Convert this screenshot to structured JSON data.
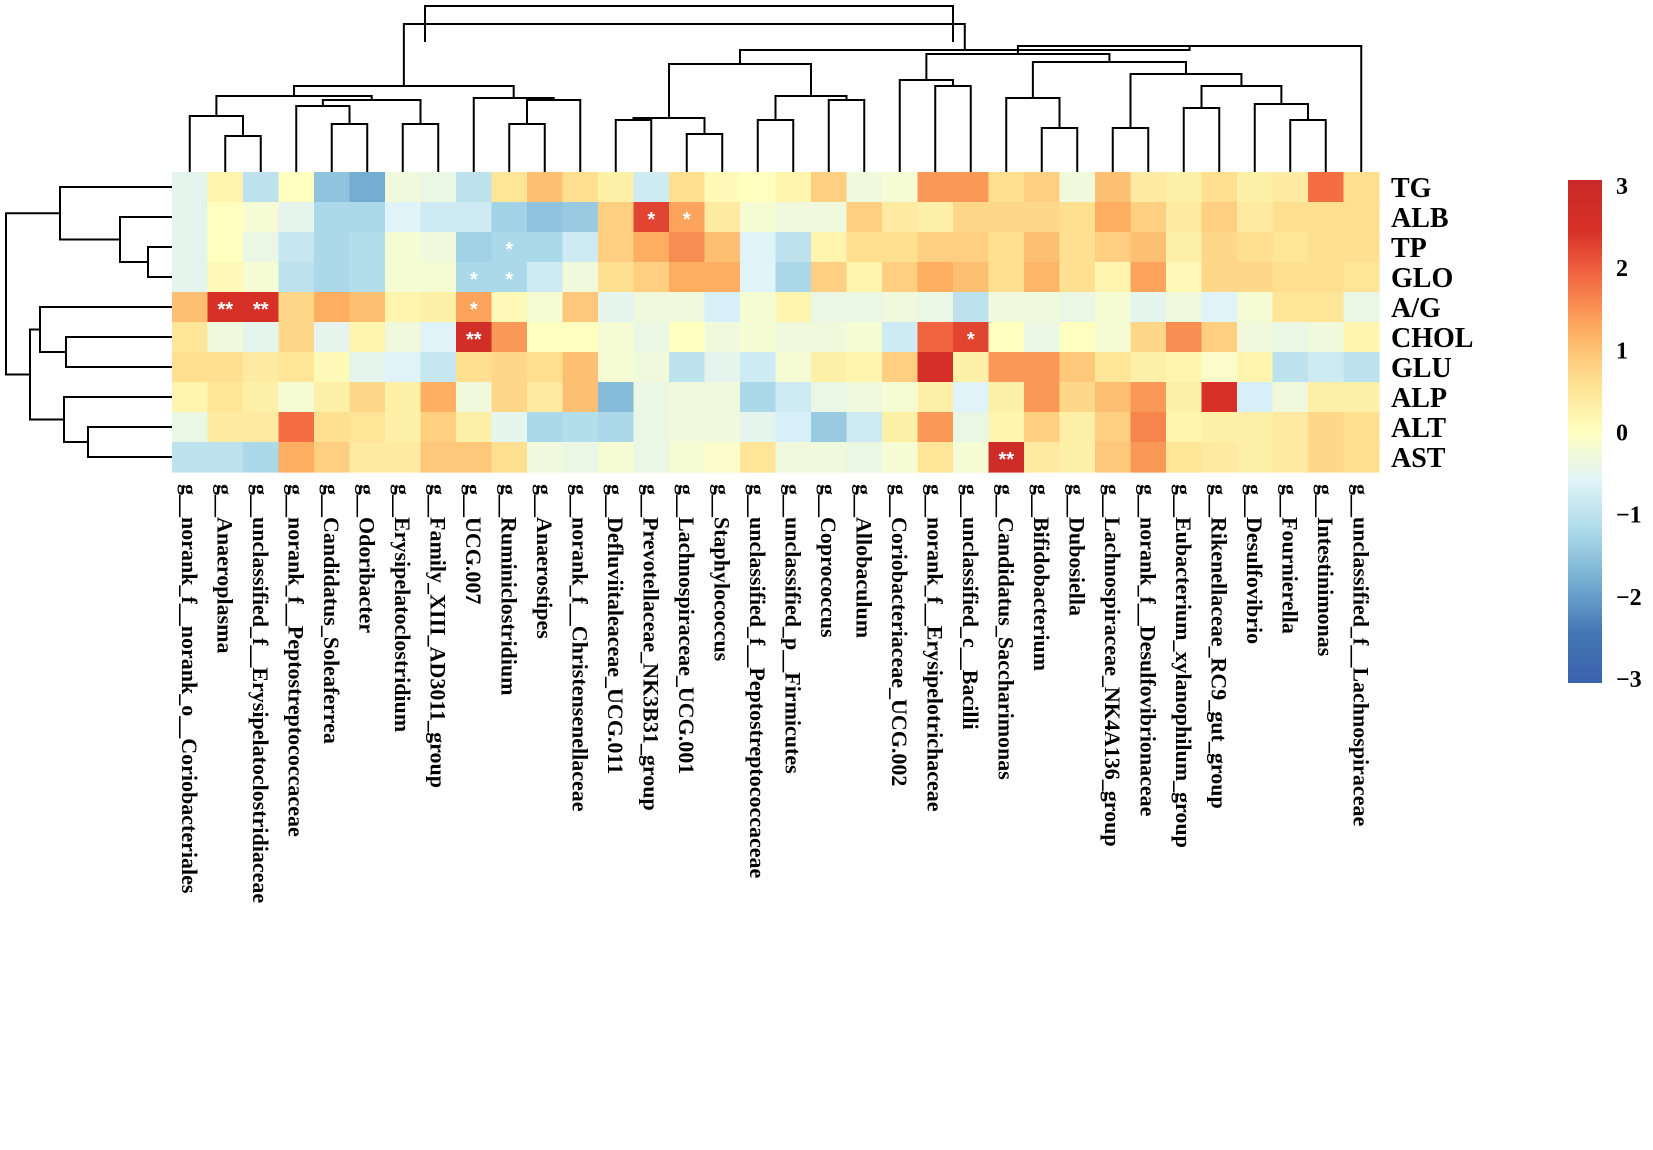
{
  "chart_data": {
    "type": "heatmap",
    "title": "",
    "rows": [
      "TG",
      "ALB",
      "TP",
      "GLO",
      "A/G",
      "CHOL",
      "GLU",
      "ALP",
      "ALT",
      "AST"
    ],
    "columns": [
      "g__norank_f__norank_o__Coriobacteriales",
      "g__Anaeroplasma",
      "g__unclassified_f__Erysipelatoclostridiaceae",
      "g__norank_f__Peptostreptococcaceae",
      "g__Candidatus_Soleaferrea",
      "g__Odoribacter",
      "g__Erysipelatoclostridium",
      "g__Family_XIII_AD3011_group",
      "g__UCG.007",
      "g__Ruminiclostridium",
      "g__Anaerostipes",
      "g__norank_f__Christensenellaceae",
      "g__Defluviitaleaceae_UCG.011",
      "g__Prevotellaceae_NK3B31_group",
      "g__Lachnospiraceae_UCG.001",
      "g__Staphylococcus",
      "g__unclassified_f__Peptostreptococcaceae",
      "g__unclassified_p__Firmicutes",
      "g__Coprococcus",
      "g__Allobaculum",
      "g__Coriobacteriaceae_UCG.002",
      "g__norank_f__Erysipelotrichaceae",
      "g__unclassified_c__Bacilli",
      "g__Candidatus_Saccharimonas",
      "g__Bifidobacterium",
      "g__Dubosiella",
      "g__Lachnospiraceae_NK4A136_group",
      "g__norank_f__Desulfovibrionaceae",
      "g__Eubacterium_xylanophilum_group",
      "g__Rikenellaceae_RC9_gut_group",
      "g__Desulfovibrio",
      "g__Fournierella",
      "g__Intestinimonas",
      "g__unclassified_f__Lachnospiraceae"
    ],
    "values": [
      [
        -0.5,
        0.2,
        -1.0,
        0.0,
        -1.5,
        -1.8,
        -0.3,
        -0.4,
        -1.0,
        0.5,
        1.0,
        0.6,
        0.3,
        -0.8,
        0.6,
        0.1,
        0.0,
        0.2,
        0.8,
        -0.3,
        -0.2,
        1.4,
        1.4,
        0.6,
        0.8,
        -0.3,
        1.0,
        0.4,
        0.3,
        0.6,
        0.3,
        0.4,
        1.8,
        0.6
      ],
      [
        -0.5,
        0.0,
        -0.2,
        -0.5,
        -1.2,
        -1.2,
        -0.6,
        -0.8,
        -0.8,
        -1.3,
        -1.5,
        -1.4,
        0.8,
        2.2,
        1.3,
        0.4,
        -0.2,
        -0.3,
        -0.3,
        0.8,
        0.4,
        0.3,
        0.7,
        0.7,
        0.7,
        0.6,
        1.2,
        0.8,
        0.4,
        0.8,
        0.4,
        0.6,
        0.6,
        0.6
      ],
      [
        -0.5,
        0.0,
        -0.4,
        -0.9,
        -1.2,
        -1.1,
        -0.2,
        -0.3,
        -1.3,
        -1.2,
        -1.2,
        -0.8,
        0.8,
        1.2,
        1.5,
        1.0,
        -0.6,
        -1.0,
        0.2,
        0.6,
        0.6,
        0.8,
        0.8,
        0.6,
        1.0,
        0.6,
        0.8,
        1.0,
        0.3,
        0.7,
        0.6,
        0.5,
        0.6,
        0.6
      ],
      [
        -0.5,
        0.1,
        -0.2,
        -1.0,
        -1.2,
        -1.1,
        -0.2,
        -0.2,
        -1.2,
        -1.2,
        -0.8,
        -0.3,
        0.6,
        0.8,
        1.2,
        1.2,
        -0.6,
        -1.2,
        0.8,
        0.2,
        0.8,
        1.2,
        1.0,
        0.6,
        1.1,
        0.6,
        0.2,
        1.3,
        0.1,
        0.7,
        0.7,
        0.6,
        0.6,
        0.5
      ],
      [
        1.0,
        2.4,
        2.4,
        0.7,
        1.2,
        1.0,
        0.2,
        0.3,
        1.3,
        0.1,
        -0.2,
        0.9,
        -0.5,
        -0.3,
        -0.3,
        -0.7,
        -0.2,
        0.2,
        -0.4,
        -0.4,
        -0.3,
        -0.4,
        -1.0,
        -0.3,
        -0.3,
        -0.4,
        -0.2,
        -0.5,
        -0.3,
        -0.6,
        -0.2,
        0.5,
        0.5,
        -0.4
      ],
      [
        0.5,
        -0.3,
        -0.5,
        0.7,
        -0.5,
        0.2,
        -0.3,
        -0.6,
        2.6,
        1.4,
        0.0,
        0.0,
        -0.2,
        -0.4,
        0.0,
        -0.3,
        -0.2,
        -0.3,
        -0.3,
        -0.2,
        -0.8,
        1.9,
        2.2,
        0.0,
        -0.4,
        0.0,
        -0.2,
        0.7,
        1.5,
        0.8,
        -0.3,
        -0.4,
        -0.3,
        0.2
      ],
      [
        0.6,
        0.6,
        0.4,
        0.5,
        0.1,
        -0.5,
        -0.6,
        -0.9,
        0.6,
        0.7,
        0.6,
        1.0,
        -0.2,
        -0.3,
        -1.0,
        -0.5,
        -0.8,
        -0.2,
        0.3,
        0.2,
        0.8,
        2.5,
        0.3,
        1.4,
        1.4,
        0.9,
        0.5,
        0.3,
        0.2,
        -0.1,
        0.2,
        -1.0,
        -0.8,
        -1.0
      ],
      [
        0.2,
        0.5,
        0.3,
        -0.2,
        0.3,
        0.7,
        0.3,
        1.2,
        -0.3,
        0.7,
        0.4,
        1.0,
        -1.6,
        -0.4,
        -0.3,
        -0.3,
        -1.2,
        -0.8,
        -0.4,
        -0.3,
        -0.2,
        0.3,
        -0.6,
        0.3,
        1.4,
        0.7,
        1.0,
        1.4,
        0.3,
        2.4,
        -0.7,
        -0.3,
        0.3,
        0.3
      ],
      [
        -0.4,
        0.4,
        0.4,
        1.8,
        0.6,
        0.5,
        0.3,
        0.8,
        0.3,
        -0.5,
        -1.2,
        -1.1,
        -1.2,
        -0.4,
        -0.3,
        -0.3,
        -0.5,
        -0.7,
        -1.4,
        -0.8,
        0.3,
        1.4,
        -0.4,
        0.2,
        0.8,
        0.3,
        0.8,
        1.6,
        0.2,
        0.3,
        0.3,
        0.4,
        0.7,
        0.6
      ],
      [
        -1.0,
        -1.0,
        -1.2,
        1.2,
        0.8,
        0.4,
        0.4,
        0.9,
        0.9,
        0.6,
        -0.3,
        -0.4,
        -0.2,
        -0.4,
        -0.2,
        -0.1,
        0.5,
        -0.3,
        -0.3,
        -0.4,
        -0.2,
        0.5,
        -0.2,
        2.8,
        0.4,
        0.3,
        0.9,
        1.4,
        0.5,
        0.4,
        0.3,
        0.4,
        0.7,
        0.6
      ]
    ],
    "annotations": [
      {
        "row": "ALB",
        "column": "g__Prevotellaceae_NK3B31_group",
        "text": "*"
      },
      {
        "row": "ALB",
        "column": "g__Lachnospiraceae_UCG.001",
        "text": "*"
      },
      {
        "row": "TP",
        "column": "g__Ruminiclostridium",
        "text": "*"
      },
      {
        "row": "GLO",
        "column": "g__UCG.007",
        "text": "*"
      },
      {
        "row": "GLO",
        "column": "g__Ruminiclostridium",
        "text": "*"
      },
      {
        "row": "A/G",
        "column": "g__Anaeroplasma",
        "text": "**"
      },
      {
        "row": "A/G",
        "column": "g__unclassified_f__Erysipelatoclostridiaceae",
        "text": "**"
      },
      {
        "row": "A/G",
        "column": "g__UCG.007",
        "text": "*"
      },
      {
        "row": "CHOL",
        "column": "g__UCG.007",
        "text": "**"
      },
      {
        "row": "CHOL",
        "column": "g__unclassified_c__Bacilli",
        "text": "*"
      },
      {
        "row": "AST",
        "column": "g__Candidatus_Saccharimonas",
        "text": "**"
      }
    ],
    "legend": {
      "position": "right",
      "range": [
        -3,
        3
      ],
      "ticks": [
        "3",
        "2",
        "1",
        "0",
        "−1",
        "−2",
        "−3"
      ],
      "colors": [
        "#3a63ad",
        "#4575b4",
        "#74add1",
        "#abd9e9",
        "#e0f3f8",
        "#ffffbf",
        "#fee090",
        "#fdae61",
        "#f46d43",
        "#d73027",
        "#c92a2a"
      ]
    },
    "dendrograms": {
      "columns": "top",
      "rows": "left"
    }
  }
}
